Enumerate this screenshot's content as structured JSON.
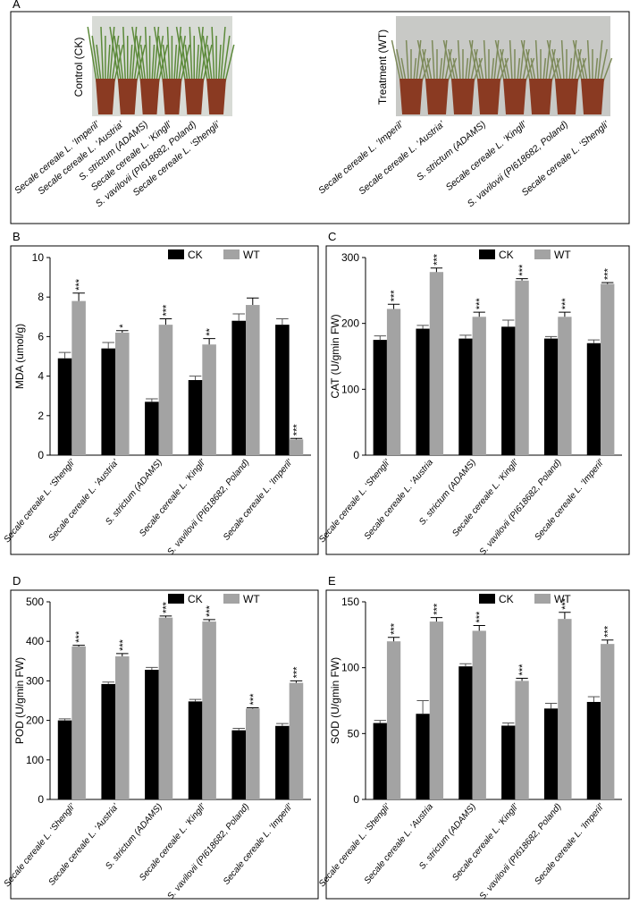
{
  "photo_panel": {
    "panel": "A",
    "control_label": "Control (CK)",
    "treatment_label": "Treatment (WT)",
    "control_pots": [
      "Secale cereale L. ‘Imperil’",
      "Secale cereale L. ‘Austria’",
      "S. strictum (ADAMS)",
      "Secale cereale L. ‘Kingll’",
      "S. vavilovii (PI618682, Poland)",
      "Secale cereale L. ‘Shengli’"
    ],
    "treatment_pots": [
      "Secale cereale L. ‘Imperil’",
      "Secale cereale L. ‘Austria’",
      "S. strictum (ADAMS)",
      "Secale cereale L. ‘Kingll’",
      "S. vavilovii (PI618682, Poland)",
      "Secale cereale L. ‘Shengli’"
    ]
  },
  "chart_data": [
    {
      "type": "bar",
      "panel": "B",
      "ylabel": "MDA (umol/g)",
      "categories": [
        "Secale cereale L. ‘Shengli’",
        "Secale cereale L. ‘Austria’",
        "S. strictum (ADAMS)",
        "Secale cereale L. ‘Kingll’",
        "S. vavilovii (PI618682, Poland)",
        "Secale cereale L. ‘Imperil’"
      ],
      "series": [
        {
          "name": "CK",
          "color": "#000000",
          "values": [
            4.9,
            5.4,
            2.7,
            3.8,
            6.8,
            6.6
          ],
          "errors": [
            0.3,
            0.3,
            0.15,
            0.2,
            0.35,
            0.3
          ]
        },
        {
          "name": "WT",
          "color": "#a3a3a3",
          "values": [
            7.8,
            6.2,
            6.6,
            5.6,
            7.6,
            0.8
          ],
          "errors": [
            0.4,
            0.1,
            0.3,
            0.3,
            0.35,
            0.05
          ],
          "significance": [
            "***",
            "*",
            "***",
            "**",
            null,
            "***"
          ]
        }
      ],
      "ylim": [
        0,
        10
      ],
      "yticks": [
        0,
        2,
        4,
        6,
        8,
        10
      ],
      "legend": "top-right"
    },
    {
      "type": "bar",
      "panel": "C",
      "ylabel": "CAT (U/gmin FW)",
      "categories": [
        "Secale cereale L. ‘Shengli’",
        "Secale cereale L. ‘Austria",
        "S. strictum (ADAMS)",
        "Secale cereale L. ‘Kingll’",
        "S. vavilovii (PI618682, Poland)",
        "Secale cereale L. ‘Imperil’"
      ],
      "series": [
        {
          "name": "CK",
          "color": "#000000",
          "values": [
            175,
            192,
            177,
            195,
            177,
            170
          ],
          "errors": [
            6,
            5,
            5,
            10,
            3,
            5
          ]
        },
        {
          "name": "WT",
          "color": "#a3a3a3",
          "values": [
            222,
            278,
            210,
            265,
            210,
            260
          ],
          "errors": [
            7,
            6,
            7,
            3,
            7,
            2
          ],
          "significance": [
            "***",
            "***",
            "***",
            "***",
            "***",
            "***"
          ]
        }
      ],
      "ylim": [
        0,
        300
      ],
      "yticks": [
        0,
        100,
        200,
        300
      ],
      "legend": "top-right"
    },
    {
      "type": "bar",
      "panel": "D",
      "ylabel": "POD (U/gmin FW)",
      "categories": [
        "Secale cereale L. ‘Shengli’",
        "Secale cereale L. ‘Austria’",
        "S. strictum (ADAMS)",
        "Secale cereale L. ‘Kingll’",
        "S. vavilovii (PI618682, Poland)",
        "Secale cereale L. ‘Imperil’"
      ],
      "series": [
        {
          "name": "CK",
          "color": "#000000",
          "values": [
            200,
            292,
            328,
            248,
            175,
            186
          ],
          "errors": [
            4,
            5,
            6,
            5,
            5,
            6
          ]
        },
        {
          "name": "WT",
          "color": "#a3a3a3",
          "values": [
            387,
            362,
            460,
            450,
            230,
            295
          ],
          "errors": [
            3,
            7,
            4,
            5,
            2,
            5
          ],
          "significance": [
            "***",
            "***",
            "***",
            "***",
            "***",
            "***"
          ]
        }
      ],
      "ylim": [
        0,
        500
      ],
      "yticks": [
        0,
        100,
        200,
        300,
        400,
        500
      ],
      "legend": "top-right"
    },
    {
      "type": "bar",
      "panel": "E",
      "ylabel": "SOD (U/gmin FW)",
      "categories": [
        "Secale cereale L. ‘Shengli’",
        "Secale cereale L. ‘Austria",
        "S. strictum (ADAMS)",
        "Secale cereale L. ‘Kingll’",
        "S. vavilovii (PI618682, Poland)",
        "Secale cereale L. ‘Imperil’"
      ],
      "series": [
        {
          "name": "CK",
          "color": "#000000",
          "values": [
            58,
            65,
            101,
            56,
            69,
            74
          ],
          "errors": [
            2,
            10,
            2,
            2,
            4,
            4
          ]
        },
        {
          "name": "WT",
          "color": "#a3a3a3",
          "values": [
            120,
            135,
            128,
            90,
            137,
            118
          ],
          "errors": [
            3,
            3,
            4,
            2,
            5,
            3
          ],
          "significance": [
            "***",
            "***",
            "***",
            "***",
            "***",
            "***"
          ]
        }
      ],
      "ylim": [
        0,
        150
      ],
      "yticks": [
        0,
        50,
        100,
        150
      ],
      "legend": "top-right"
    }
  ]
}
